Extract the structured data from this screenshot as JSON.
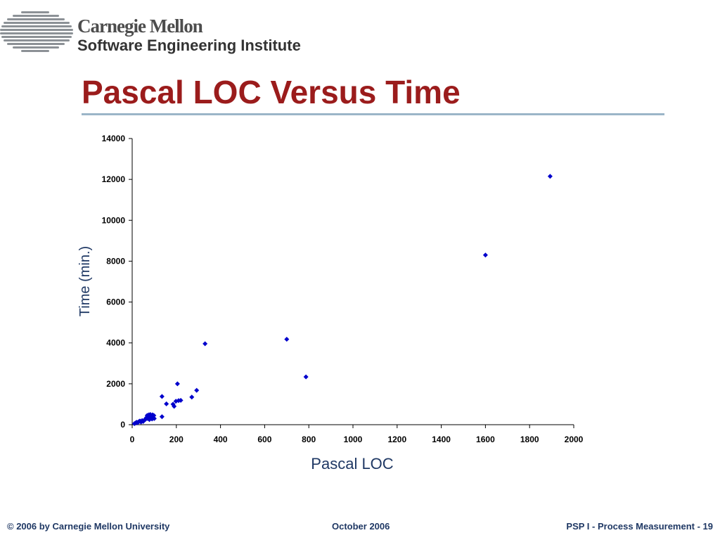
{
  "header": {
    "org_line1": "Carnegie Mellon",
    "org_line2": "Software Engineering Institute",
    "logo_icon": "sei-striped-logo-icon"
  },
  "slide": {
    "title": "Pascal LOC Versus Time"
  },
  "colors": {
    "title": "#9b1c1c",
    "rule": "#9bb5c8",
    "points": "#0000cc",
    "axis_label": "#1f3864",
    "footer": "#1f3864"
  },
  "chart_data": {
    "type": "scatter",
    "xlabel": "Pascal LOC",
    "ylabel": "Time (min.)",
    "xlim": [
      0,
      2000
    ],
    "ylim": [
      0,
      14000
    ],
    "x_ticks": [
      "0",
      "200",
      "400",
      "600",
      "800",
      "1000",
      "1200",
      "1400",
      "1600",
      "1800",
      "2000"
    ],
    "y_ticks": [
      "0",
      "2000",
      "4000",
      "6000",
      "8000",
      "10000",
      "12000",
      "14000"
    ],
    "grid": false,
    "legend": "none",
    "marker": "diamond",
    "x": [
      10,
      15,
      20,
      25,
      30,
      35,
      40,
      45,
      50,
      55,
      60,
      65,
      68,
      70,
      72,
      75,
      78,
      80,
      82,
      85,
      88,
      90,
      92,
      95,
      98,
      100,
      135,
      135,
      155,
      185,
      190,
      198,
      205,
      210,
      220,
      270,
      292,
      330,
      700,
      787,
      1600,
      1893
    ],
    "y": [
      50,
      80,
      120,
      100,
      150,
      180,
      130,
      200,
      160,
      230,
      260,
      350,
      450,
      300,
      420,
      480,
      250,
      380,
      500,
      320,
      420,
      280,
      480,
      350,
      450,
      300,
      390,
      1380,
      1020,
      1000,
      900,
      1150,
      2000,
      1180,
      1190,
      1350,
      1680,
      3960,
      4180,
      2340,
      8300,
      12150
    ]
  },
  "footer": {
    "left": "© 2006 by Carnegie Mellon University",
    "center": "October 2006",
    "right": "PSP I - Process Measurement - 19"
  }
}
